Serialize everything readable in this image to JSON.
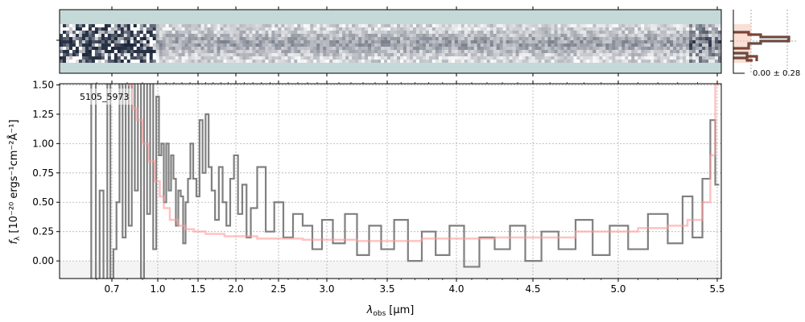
{
  "chart_data": [
    {
      "type": "heatmap",
      "panel": "2d-spectrum",
      "colormap": "bone-like",
      "background_color": "#c5d9d8"
    },
    {
      "type": "bar",
      "panel": "flux-histogram",
      "annotation": "0.00 ± 0.28",
      "line_color": "#5a3a2a",
      "fill_color": "#f9c9b8"
    },
    {
      "type": "line",
      "label": "5105_5973",
      "xlabel": "λ_obs [μm]",
      "xlabel_main": "λ",
      "xlabel_sub": "obs",
      "xlabel_unit": "[μm]",
      "ylabel": "f_λ [10^-20 ergs^-1 cm^-2 Å^-1]",
      "ylabel_text": "f",
      "ylabel_sub": "λ",
      "ylabel_unit": "[10⁻²⁰ ergs⁻¹cm⁻²Å⁻¹]",
      "xlim": [
        0.5,
        5.52
      ],
      "ylim": [
        -0.15,
        1.51
      ],
      "x_ticks": [
        "0.7",
        "1.0",
        "1.5",
        "2.0",
        "2.5",
        "3.0",
        "3.5",
        "4.0",
        "4.5",
        "5.0",
        "5.5"
      ],
      "y_ticks": [
        "0.00",
        "0.25",
        "0.50",
        "0.75",
        "1.00",
        "1.25",
        "1.50"
      ],
      "grid": true,
      "series": [
        {
          "style": "step",
          "color": "#808080",
          "x": [
            0.55,
            0.58,
            0.61,
            0.63,
            0.66,
            0.68,
            0.7,
            0.72,
            0.74,
            0.76,
            0.78,
            0.8,
            0.82,
            0.84,
            0.86,
            0.88,
            0.9,
            0.92,
            0.94,
            0.96,
            0.98,
            1.0,
            1.03,
            1.06,
            1.09,
            1.12,
            1.15,
            1.18,
            1.21,
            1.24,
            1.27,
            1.3,
            1.33,
            1.36,
            1.39,
            1.42,
            1.46,
            1.5,
            1.54,
            1.58,
            1.62,
            1.66,
            1.7,
            1.75,
            1.8,
            1.85,
            1.9,
            1.95,
            2.0,
            2.05,
            2.1,
            2.15,
            2.2,
            2.3,
            2.4,
            2.5,
            2.6,
            2.7,
            2.8,
            2.9,
            3.0,
            3.1,
            3.2,
            3.3,
            3.4,
            3.5,
            3.6,
            3.7,
            3.8,
            3.9,
            4.0,
            4.1,
            4.2,
            4.3,
            4.4,
            4.5,
            4.6,
            4.7,
            4.8,
            4.9,
            5.0,
            5.1,
            5.2,
            5.3,
            5.35,
            5.4,
            5.45,
            5.48,
            5.5
          ],
          "y": [
            -0.5,
            1.6,
            -0.5,
            0.6,
            -0.5,
            1.6,
            -0.3,
            0.1,
            0.5,
            1.6,
            0.2,
            1.6,
            0.3,
            1.6,
            0.6,
            1.6,
            -0.2,
            1.6,
            0.4,
            1.6,
            0.1,
            1.4,
            0.9,
            1.0,
            0.5,
            1.0,
            0.6,
            0.9,
            0.7,
            0.3,
            0.6,
            0.55,
            0.15,
            0.5,
            0.7,
            1.0,
            0.7,
            0.55,
            1.2,
            0.75,
            1.25,
            0.8,
            0.6,
            0.35,
            0.8,
            0.5,
            0.3,
            0.7,
            0.9,
            0.4,
            0.65,
            0.2,
            0.45,
            0.8,
            0.25,
            0.5,
            0.2,
            0.4,
            0.3,
            0.1,
            0.35,
            0.15,
            0.4,
            0.05,
            0.3,
            0.1,
            0.35,
            0.0,
            0.25,
            0.05,
            0.3,
            -0.05,
            0.2,
            0.1,
            0.3,
            0.0,
            0.25,
            0.1,
            0.35,
            0.05,
            0.3,
            0.1,
            0.4,
            0.15,
            0.55,
            0.2,
            0.7,
            1.2,
            0.65
          ]
        },
        {
          "style": "step",
          "color": "#ff9999",
          "x": [
            0.82,
            0.85,
            0.88,
            0.92,
            0.96,
            1.0,
            1.05,
            1.1,
            1.2,
            1.3,
            1.4,
            1.5,
            1.7,
            2.0,
            2.5,
            3.0,
            3.5,
            4.0,
            4.5,
            5.0,
            5.2,
            5.3,
            5.4,
            5.45,
            5.48,
            5.5
          ],
          "y": [
            1.5,
            1.3,
            1.2,
            1.0,
            0.85,
            0.68,
            0.55,
            0.45,
            0.35,
            0.3,
            0.27,
            0.25,
            0.23,
            0.21,
            0.19,
            0.18,
            0.17,
            0.19,
            0.2,
            0.25,
            0.28,
            0.3,
            0.35,
            0.5,
            0.9,
            1.5
          ]
        }
      ]
    }
  ]
}
